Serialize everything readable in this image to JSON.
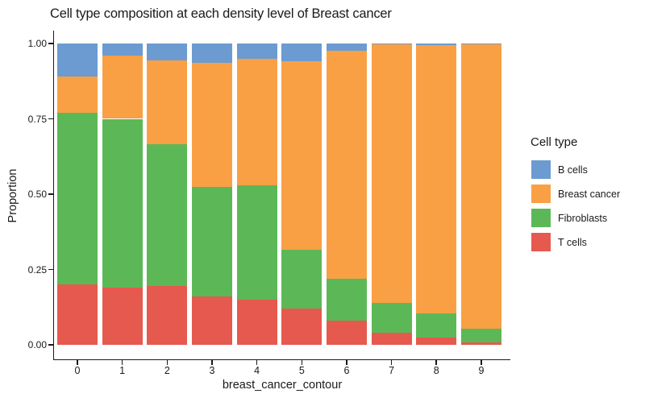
{
  "title": "Cell type composition at each density level of Breast cancer",
  "chart_data": {
    "type": "bar",
    "stacked": true,
    "orientation": "vertical",
    "title": "Cell type composition at each density level of Breast cancer",
    "xlabel": "breast_cancer_contour",
    "ylabel": "Proportion",
    "categories": [
      "0",
      "1",
      "2",
      "3",
      "4",
      "5",
      "6",
      "7",
      "8",
      "9"
    ],
    "y_ticks": [
      {
        "label": "0.00",
        "value": 0.0
      },
      {
        "label": "0.25",
        "value": 0.25
      },
      {
        "label": "0.50",
        "value": 0.5
      },
      {
        "label": "0.75",
        "value": 0.75
      },
      {
        "label": "1.00",
        "value": 1.0
      }
    ],
    "ylim": [
      0,
      1
    ],
    "grid": false,
    "background": "#ffffff",
    "axis_color": "#1a1a1a",
    "series": [
      {
        "name": "T cells",
        "color": "#E6594E",
        "values": [
          0.2,
          0.19,
          0.195,
          0.16,
          0.15,
          0.12,
          0.08,
          0.04,
          0.025,
          0.008
        ]
      },
      {
        "name": "Fibroblasts",
        "color": "#5CB857",
        "values": [
          0.57,
          0.56,
          0.47,
          0.365,
          0.38,
          0.195,
          0.14,
          0.1,
          0.078,
          0.045
        ]
      },
      {
        "name": "Breast cancer",
        "color": "#F9A045",
        "values": [
          0.12,
          0.21,
          0.28,
          0.41,
          0.42,
          0.625,
          0.755,
          0.857,
          0.891,
          0.945
        ]
      },
      {
        "name": "B cells",
        "color": "#6B9BD0",
        "values": [
          0.11,
          0.04,
          0.055,
          0.065,
          0.05,
          0.06,
          0.025,
          0.003,
          0.006,
          0.002
        ]
      }
    ],
    "legend": {
      "title": "Cell type",
      "position": "right",
      "entries": [
        {
          "label": "B cells",
          "color": "#6B9BD0"
        },
        {
          "label": "Breast cancer",
          "color": "#F9A045"
        },
        {
          "label": "Fibroblasts",
          "color": "#5CB857"
        },
        {
          "label": "T cells",
          "color": "#E6594E"
        }
      ]
    }
  }
}
